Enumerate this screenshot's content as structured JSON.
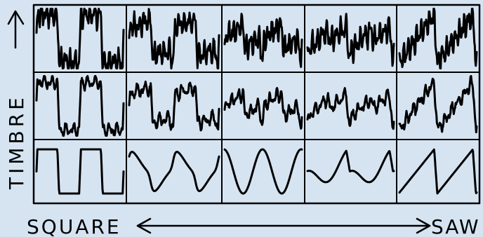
{
  "labels": {
    "y_axis": "TIMBRE",
    "x_left": "SQUARE",
    "x_right": "SAW"
  },
  "grid": {
    "rows": 3,
    "cols": 5,
    "row_contents": [
      "timbre-high",
      "timbre-mid",
      "timbre-pure"
    ]
  },
  "colors": {
    "background": "#d6e4f2",
    "ink": "#000000"
  }
}
